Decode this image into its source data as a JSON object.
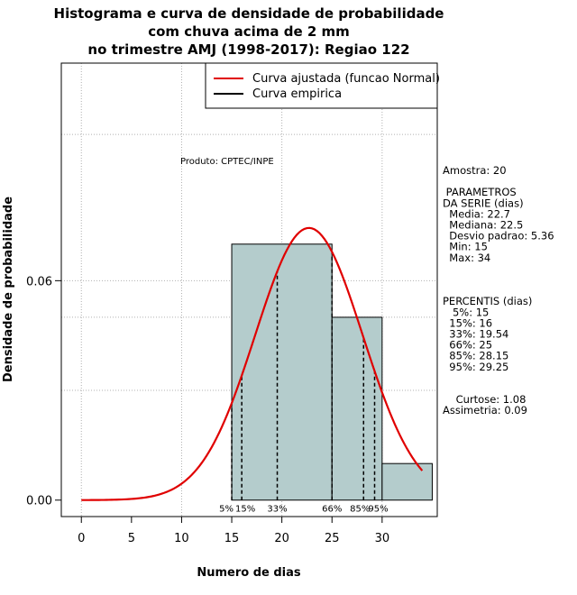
{
  "chart_data": {
    "type": "histogram",
    "title_lines": [
      "Histograma e curva de densidade de probabilidade",
      "com chuva acima de 2 mm",
      "no trimestre AMJ (1998-2017): Regiao 122"
    ],
    "xlabel": "Numero de dias",
    "ylabel": "Densidade de probabilidade",
    "xlim": [
      -2,
      35.5
    ],
    "ylim": [
      -0.0045,
      0.1195
    ],
    "x_ticks": [
      0,
      5,
      10,
      15,
      20,
      25,
      30
    ],
    "x_tick_labels": [
      "0",
      "5",
      "10",
      "15",
      "20",
      "25",
      "30"
    ],
    "y_ticks": [
      0.0,
      0.06
    ],
    "y_tick_labels": [
      "0.00",
      "0.06"
    ],
    "grid_x": [
      0,
      10,
      20,
      30
    ],
    "grid_y": [
      0.03,
      0.05,
      0.06,
      0.1
    ],
    "bins": [
      {
        "start": 15,
        "end": 25,
        "density": 0.07
      },
      {
        "start": 25,
        "end": 30,
        "density": 0.05
      },
      {
        "start": 30,
        "end": 35,
        "density": 0.01
      }
    ],
    "normal_fit": {
      "mean": 22.7,
      "sd": 5.36,
      "x_from": 0,
      "x_to": 34,
      "color": "#e00000"
    },
    "percentile_lines": [
      {
        "label": "5%",
        "x": 15
      },
      {
        "label": "15%",
        "x": 16
      },
      {
        "label": "33%",
        "x": 19.54
      },
      {
        "label": "66%",
        "x": 25
      },
      {
        "label": "85%",
        "x": 28.15
      },
      {
        "label": "95%",
        "x": 29.25
      }
    ],
    "legend": [
      {
        "label": "Curva ajustada (funcao Normal)",
        "color": "#e00000"
      },
      {
        "label": "Curva empirica",
        "color": "#000000"
      }
    ],
    "legend_position": "top-right",
    "product_label": "Produto: CPTEC/INPE",
    "bar_fill": "#b4cccc",
    "stats_panel": [
      "Amostra: 20",
      "",
      " PARAMETROS",
      "DA SERIE (dias)",
      "  Media: 22.7",
      "  Mediana: 22.5",
      "  Desvio padrao: 5.36",
      "  Min: 15",
      "  Max: 34",
      "",
      "",
      "",
      "PERCENTIS (dias)",
      "   5%: 15",
      "  15%: 16",
      "  33%: 19.54",
      "  66%: 25",
      "  85%: 28.15",
      "  95%: 29.25",
      "",
      "",
      "    Curtose: 1.08",
      "Assimetria: 0.09"
    ]
  }
}
